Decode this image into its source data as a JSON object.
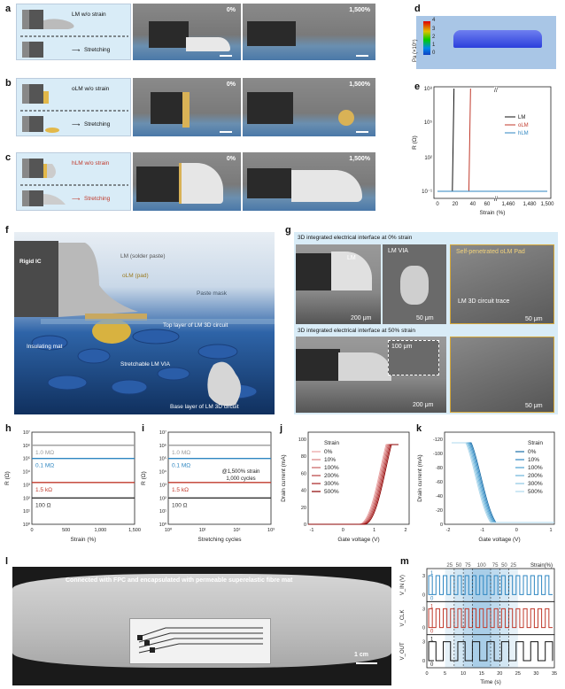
{
  "panels": {
    "a": {
      "letter": "a",
      "schematic_top": "LM w/o strain",
      "schematic_bottom": "Stretching",
      "img1_label": "0%",
      "img2_label": "1,500%"
    },
    "b": {
      "letter": "b",
      "schematic_top": "oLM w/o strain",
      "schematic_bottom": "Stretching",
      "img1_label": "0%",
      "img2_label": "1,500%"
    },
    "c": {
      "letter": "c",
      "schematic_top": "hLM w/o strain",
      "schematic_bottom": "Stretching",
      "img1_label": "0%",
      "img2_label": "1,500%"
    },
    "d": {
      "letter": "d",
      "colorbar_title": "Pa (×10⁵)",
      "colorbar_ticks": [
        "4",
        "3",
        "2",
        "1",
        "0"
      ]
    },
    "e": {
      "letter": "e"
    },
    "f": {
      "letter": "f",
      "labels": {
        "rigid_ic": "Rigid IC",
        "lm_solder": "LM (solder paste)",
        "olm_pad": "oLM (pad)",
        "paste_mask": "Paste mask",
        "top_layer": "Top layer of LM 3D circuit",
        "insulating_mat": "Insulating mat",
        "via": "Stretchable LM VIA",
        "base_layer": "Base layer of LM 3D circuit"
      }
    },
    "g": {
      "letter": "g",
      "title_top": "3D integrated electrical interface at 0% strain",
      "title_bottom": "3D integrated electrical interface at 50% strain",
      "label_lm": "LM",
      "label_lm_via": "LM VIA",
      "label_self_pen": "Self-penetrated oLM Pad",
      "label_trace": "LM 3D circuit trace",
      "scale_200_top": "200 μm",
      "scale_50_top_a": "50 μm",
      "scale_50_top_b": "50 μm",
      "scale_100": "100 μm",
      "scale_200_bottom": "200 μm",
      "scale_50_bottom": "50 μm"
    },
    "h": {
      "letter": "h"
    },
    "i": {
      "letter": "i"
    },
    "j": {
      "letter": "j"
    },
    "k": {
      "letter": "k"
    },
    "l": {
      "letter": "l",
      "caption": "Connected with FPC and encapsulated with permeable superelastic fibre mat",
      "scale": "1 cm"
    },
    "m": {
      "letter": "m"
    }
  },
  "chart_data": [
    {
      "id": "e",
      "type": "line",
      "xlabel": "Strain (%)",
      "ylabel": "R (Ω)",
      "y_scale": "log",
      "ylim": [
        0.1,
        100000000.0
      ],
      "x_ticks": [
        "0",
        "20",
        "40",
        "60",
        "1,460",
        "1,480",
        "1,500"
      ],
      "y_ticks": [
        "10⁸",
        "10⁵",
        "10²",
        "10⁻¹"
      ],
      "series": [
        {
          "name": "LM",
          "color": "#111111",
          "x": [
            0,
            15,
            18,
            20
          ],
          "y": [
            0.1,
            0.1,
            0.1,
            100000000.0
          ]
        },
        {
          "name": "oLM",
          "color": "#c0392b",
          "x": [
            0,
            35,
            38,
            40
          ],
          "y": [
            0.1,
            0.1,
            0.1,
            100000000.0
          ]
        },
        {
          "name": "hLM",
          "color": "#2e86c1",
          "x": [
            0,
            1500
          ],
          "y": [
            0.1,
            0.1
          ]
        }
      ]
    },
    {
      "id": "h",
      "type": "line",
      "xlabel": "Strain (%)",
      "ylabel": "R (Ω)",
      "y_scale": "log",
      "x_ticks": [
        "0",
        "500",
        "1,000",
        "1,500"
      ],
      "y_ticks": [
        "10⁰",
        "10¹",
        "10²",
        "10³",
        "10⁴",
        "10⁵",
        "10⁶",
        "10⁷"
      ],
      "series": [
        {
          "name": "1.0 MΩ",
          "color": "#999999",
          "value": 1000000
        },
        {
          "name": "0.1 MΩ",
          "color": "#2e86c1",
          "value": 100000
        },
        {
          "name": "1.5 kΩ",
          "color": "#c0392b",
          "value": 1500
        },
        {
          "name": "100 Ω",
          "color": "#333333",
          "value": 100
        }
      ]
    },
    {
      "id": "i",
      "type": "line",
      "xlabel": "Stretching cycles",
      "ylabel": "R (Ω)",
      "y_scale": "log",
      "annotation": "@1,500% strain\n1,000 cycles",
      "x_ticks": [
        "10⁰",
        "10¹",
        "10²",
        "10³"
      ],
      "y_ticks": [
        "10⁰",
        "10¹",
        "10²",
        "10³",
        "10⁴",
        "10⁵",
        "10⁶",
        "10⁷"
      ],
      "series": [
        {
          "name": "1.0 MΩ",
          "color": "#999999",
          "value": 1000000
        },
        {
          "name": "0.1 MΩ",
          "color": "#2e86c1",
          "value": 100000
        },
        {
          "name": "1.5 kΩ",
          "color": "#c0392b",
          "value": 1500
        },
        {
          "name": "100 Ω",
          "color": "#333333",
          "value": 100
        }
      ]
    },
    {
      "id": "j",
      "type": "line",
      "xlabel": "Gate voltage (V)",
      "ylabel": "Drain current (mA)",
      "legend_title": "Strain",
      "x_ticks": [
        "-1",
        "0",
        "1",
        "2"
      ],
      "y_ticks": [
        "0",
        "20",
        "40",
        "60",
        "80",
        "100"
      ],
      "series": [
        {
          "name": "0%",
          "color": "#e8a0a0"
        },
        {
          "name": "10%",
          "color": "#d98080"
        },
        {
          "name": "100%",
          "color": "#c86060"
        },
        {
          "name": "200%",
          "color": "#b84040"
        },
        {
          "name": "300%",
          "color": "#a82020"
        },
        {
          "name": "500%",
          "color": "#8b0000"
        }
      ]
    },
    {
      "id": "k",
      "type": "line",
      "xlabel": "Gate voltage (V)",
      "ylabel": "Drain current (mA)",
      "legend_title": "Strain",
      "x_ticks": [
        "-2",
        "-1",
        "0",
        "1"
      ],
      "y_ticks": [
        "-120",
        "-100",
        "-80",
        "-60",
        "-40",
        "-20",
        "0"
      ],
      "series": [
        {
          "name": "0%",
          "color": "#1b6fa8"
        },
        {
          "name": "10%",
          "color": "#2e86c1"
        },
        {
          "name": "100%",
          "color": "#4a9fd0"
        },
        {
          "name": "200%",
          "color": "#6bb3da"
        },
        {
          "name": "300%",
          "color": "#8cc6e3"
        },
        {
          "name": "500%",
          "color": "#aed8ec"
        }
      ]
    },
    {
      "id": "m",
      "type": "line",
      "xlabel": "Time (s)",
      "strain_label": "Strain(%)",
      "strain_values": [
        "25",
        "50",
        "75",
        "100",
        "75",
        "50",
        "25"
      ],
      "x_ticks": [
        "0",
        "5",
        "10",
        "15",
        "20",
        "25",
        "30",
        "35"
      ],
      "rows": [
        {
          "ylabel": "V_IN (V)",
          "ticks": [
            "3",
            "0"
          ],
          "level_hi": "1",
          "level_lo": "0",
          "color": "#2e86c1"
        },
        {
          "ylabel": "V_CLK",
          "ticks": [
            "3",
            "0"
          ],
          "level_hi": "1",
          "level_lo": "0",
          "color": "#c0392b"
        },
        {
          "ylabel": "V_OUT",
          "ticks": [
            "3",
            "0"
          ],
          "level_hi": "1",
          "level_lo": "0",
          "color": "#111111"
        }
      ]
    }
  ]
}
